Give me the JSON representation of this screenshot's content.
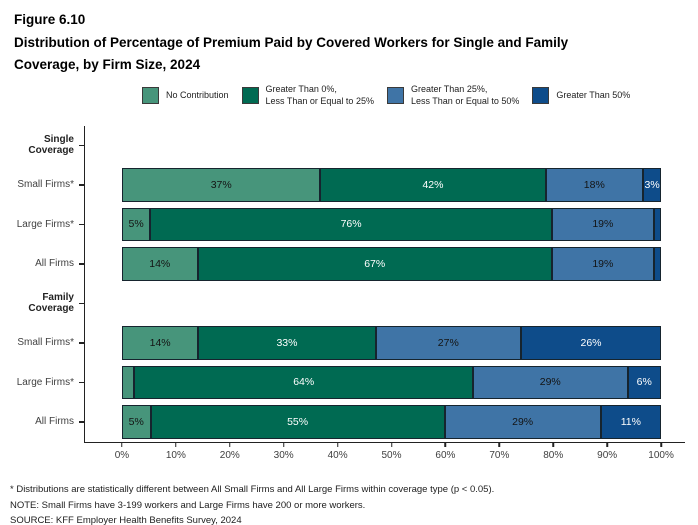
{
  "title": "Figure 6.10",
  "subtitle": "Distribution of Percentage of Premium Paid by Covered Workers for Single and Family Coverage, by Firm Size, 2024",
  "legend": [
    {
      "label": "No Contribution",
      "color": "#47957B"
    },
    {
      "label": "Greater Than 0%,\nLess Than or Equal to 25%",
      "color": "#006A52"
    },
    {
      "label": "Greater Than 25%,\nLess Than or Equal to 50%",
      "color": "#3F74A6"
    },
    {
      "label": "Greater Than 50%",
      "color": "#0E4C8A"
    }
  ],
  "chart_data": {
    "type": "bar",
    "orientation": "horizontal-stacked",
    "title": "Figure 6.10",
    "subtitle": "Distribution of Percentage of Premium Paid by Covered Workers for Single and Family Coverage, by Firm Size, 2024",
    "series_names": [
      "No Contribution",
      "Greater Than 0%, Less Than or Equal to 25%",
      "Greater Than 25%, Less Than or Equal to 50%",
      "Greater Than 50%"
    ],
    "colors": [
      "#47957B",
      "#006A52",
      "#3F74A6",
      "#0E4C8A"
    ],
    "label_text_colors": [
      "#141414",
      "#ffffff",
      "#141414",
      "#ffffff"
    ],
    "xlim": [
      0,
      100
    ],
    "x_ticks": [
      "0%",
      "10%",
      "20%",
      "30%",
      "40%",
      "50%",
      "60%",
      "70%",
      "80%",
      "90%",
      "100%"
    ],
    "grid": false,
    "legend_position": "top",
    "groups": [
      {
        "label": "Single Coverage",
        "rows": [
          {
            "label": "Small Firms*",
            "values": [
              37,
              42,
              18,
              3
            ],
            "labels": [
              "37%",
              "42%",
              "18%",
              "3%"
            ]
          },
          {
            "label": "Large Firms*",
            "values": [
              5,
              76,
              19,
              1
            ],
            "labels": [
              "5%",
              "76%",
              "19%",
              ""
            ]
          },
          {
            "label": "All Firms",
            "values": [
              14,
              67,
              19,
              1
            ],
            "labels": [
              "14%",
              "67%",
              "19%",
              ""
            ]
          }
        ]
      },
      {
        "label": "Family Coverage",
        "rows": [
          {
            "label": "Small Firms*",
            "values": [
              14,
              33,
              27,
              26
            ],
            "labels": [
              "14%",
              "33%",
              "27%",
              "26%"
            ]
          },
          {
            "label": "Large Firms*",
            "values": [
              2,
              64,
              29,
              6
            ],
            "labels": [
              "",
              "64%",
              "29%",
              "6%"
            ]
          },
          {
            "label": "All Firms",
            "values": [
              5,
              55,
              29,
              11
            ],
            "labels": [
              "5%",
              "55%",
              "29%",
              "11%"
            ]
          }
        ]
      }
    ]
  },
  "footnotes": [
    "* Distributions are statistically different between All Small Firms and All Large Firms within coverage type (p < 0.05).",
    "NOTE: Small Firms have 3-199 workers and Large Firms have 200 or more workers.",
    "SOURCE: KFF Employer Health Benefits Survey, 2024"
  ]
}
